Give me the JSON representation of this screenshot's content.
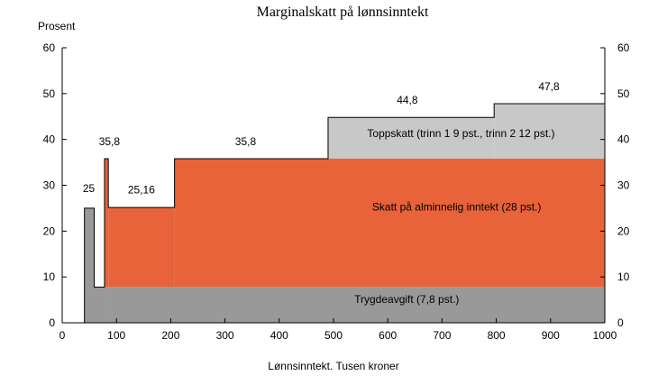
{
  "chart_data": {
    "type": "area",
    "title": "Marginalskatt på lønnsinntekt",
    "ylabel": "Prosent",
    "xlabel": "Lønnsinntekt. Tusen kroner",
    "xlim": [
      0,
      1000
    ],
    "ylim": [
      0,
      60
    ],
    "xticks": [
      0,
      100,
      200,
      300,
      400,
      500,
      600,
      700,
      800,
      900,
      1000
    ],
    "yticks": [
      0,
      10,
      20,
      30,
      40,
      50,
      60
    ],
    "grid": false,
    "colors": {
      "trygdeavgift": "#999999",
      "alminnelig": "#e8623a",
      "toppskatt": "#c8c8c8"
    },
    "bands": [
      {
        "name": "Trygdeavgift (7,8 pst.)",
        "segments": [
          {
            "x0": 41,
            "x1": 59,
            "y0": 0,
            "y1": 25
          },
          {
            "x0": 59,
            "x1": 78,
            "y0": 0,
            "y1": 7.8
          },
          {
            "x0": 78,
            "x1": 1000,
            "y0": 0,
            "y1": 7.8
          }
        ]
      },
      {
        "name": "Skatt på alminnelig inntekt (28 pst.)",
        "segments": [
          {
            "x0": 78,
            "x1": 85,
            "y0": 7.8,
            "y1": 35.8
          },
          {
            "x0": 85,
            "x1": 207,
            "y0": 7.8,
            "y1": 25.16
          },
          {
            "x0": 207,
            "x1": 1000,
            "y0": 7.8,
            "y1": 35.8
          }
        ]
      },
      {
        "name": "Toppskatt (trinn 1 9 pst., trinn 2 12 pst.)",
        "segments": [
          {
            "x0": 490,
            "x1": 796,
            "y0": 35.8,
            "y1": 44.8
          },
          {
            "x0": 796,
            "x1": 1000,
            "y0": 35.8,
            "y1": 47.8
          }
        ]
      }
    ],
    "outline": [
      [
        41,
        0
      ],
      [
        41,
        25
      ],
      [
        59,
        25
      ],
      [
        59,
        7.8
      ],
      [
        78,
        7.8
      ],
      [
        78,
        35.8
      ],
      [
        85,
        35.8
      ],
      [
        85,
        25.16
      ],
      [
        207,
        25.16
      ],
      [
        207,
        35.8
      ],
      [
        490,
        35.8
      ],
      [
        490,
        44.8
      ],
      [
        796,
        44.8
      ],
      [
        796,
        47.8
      ],
      [
        1000,
        47.8
      ]
    ],
    "value_labels": [
      {
        "text": "25",
        "x": 49,
        "y": 28.5
      },
      {
        "text": "35,8",
        "x": 87,
        "y": 38.8
      },
      {
        "text": "25,16",
        "x": 146,
        "y": 28.2
      },
      {
        "text": "35,8",
        "x": 338,
        "y": 38.8
      },
      {
        "text": "44,8",
        "x": 636,
        "y": 47.8
      },
      {
        "text": "47,8",
        "x": 897,
        "y": 50.8
      }
    ],
    "band_labels": [
      {
        "text": "Toppskatt (trinn 1 9 pst., trinn 2 12 pst.)",
        "x": 735,
        "y": 40.5
      },
      {
        "text": "Skatt på alminnelig inntekt (28 pst.)",
        "x": 727,
        "y": 24.5
      },
      {
        "text": "Trygdeavgift (7,8 pst.)",
        "x": 635,
        "y": 4.3
      }
    ]
  }
}
